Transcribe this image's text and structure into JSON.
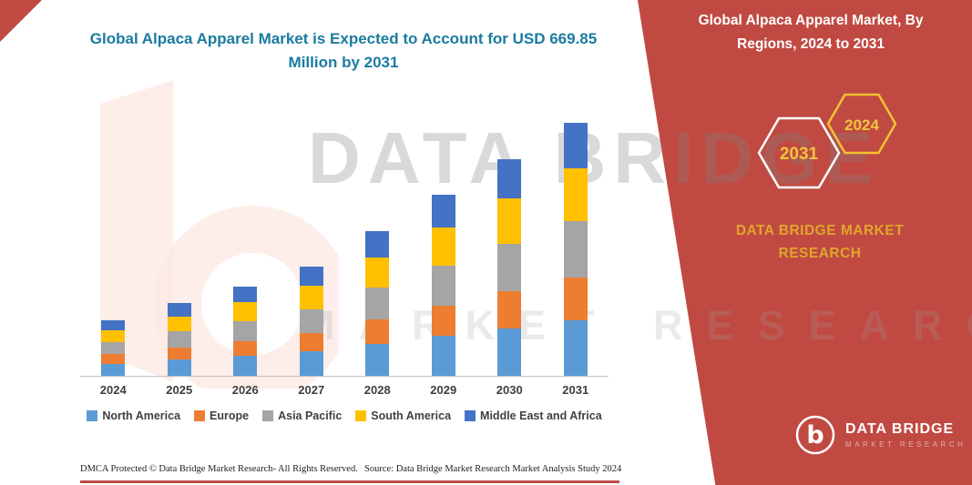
{
  "title": "Global Alpaca Apparel Market is Expected to Account for USD 669.85 Million by 2031",
  "panel": {
    "heading": "Global Alpaca Apparel Market, By Regions, 2024 to 2031",
    "hex_left": "2031",
    "hex_right": "2024",
    "brand": "DATA BRIDGE MARKET RESEARCH",
    "logo_title": "DATA BRIDGE",
    "logo_subtitle": "MARKET RESEARCH",
    "bg_color": "#C04A42",
    "accent_gold": "#EFC53F"
  },
  "watermark": {
    "line1": "DATA BRIDGE",
    "line2": "MARKET RESEARCH"
  },
  "footer": {
    "dmca": "DMCA Protected © Data Bridge Market Research-  All Rights Reserved.",
    "source": "Source: Data Bridge Market Research  Market Analysis Study 2024"
  },
  "chart_data": {
    "type": "bar",
    "stacked": true,
    "title": "Global Alpaca Apparel Market is Expected to Account for USD 669.85 Million by 2031",
    "units": "USD Million",
    "categories": [
      "2024",
      "2025",
      "2026",
      "2027",
      "2028",
      "2029",
      "2030",
      "2031"
    ],
    "series": [
      {
        "name": "North America",
        "color": "#5B9BD5",
        "values": [
          32,
          43,
          52,
          64,
          84,
          105,
          126,
          147.4
        ]
      },
      {
        "name": "Europe",
        "color": "#ED7D31",
        "values": [
          25,
          33,
          40,
          49,
          65,
          81,
          97,
          113.9
        ]
      },
      {
        "name": "Asia Pacific",
        "color": "#A5A5A5",
        "values": [
          32,
          42,
          52,
          64,
          84,
          105,
          126,
          147.4
        ]
      },
      {
        "name": "South America",
        "color": "#FFC000",
        "values": [
          31,
          40,
          50,
          61,
          80,
          101,
          120,
          140.65
        ]
      },
      {
        "name": "Middle East and Africa",
        "color": "#4472C4",
        "values": [
          27,
          35,
          43,
          52,
          69,
          87,
          104,
          120.5
        ]
      }
    ],
    "totals": [
      147,
      193,
      237,
      290,
      382,
      479,
      573,
      669.85
    ],
    "xlabel": "",
    "ylabel": "",
    "grid": false,
    "legend_position": "bottom"
  }
}
